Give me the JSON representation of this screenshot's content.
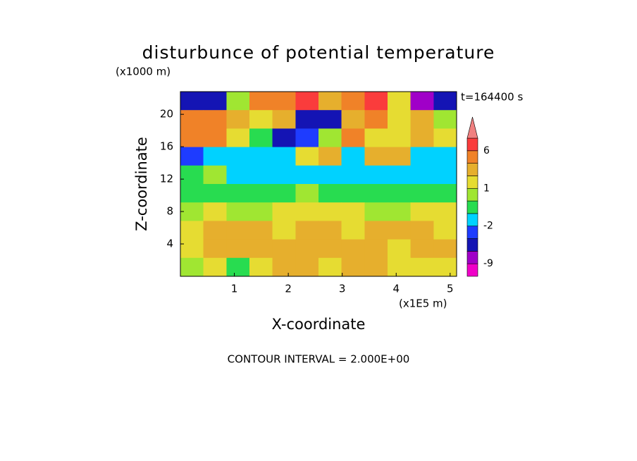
{
  "chart_data": {
    "type": "contour",
    "title": "disturbunce of potential temperature",
    "y_unit": "(x1000 m)",
    "x_unit": "(x1E5 m)",
    "xlabel": "X-coordinate",
    "ylabel": "Z-coordinate",
    "annotation": "t=164400 s",
    "footer": "CONTOUR INTERVAL = 2.000E+00",
    "xlim": [
      0,
      5.12
    ],
    "ylim": [
      0,
      22.8
    ],
    "xticks": [
      1,
      2,
      3,
      4,
      5
    ],
    "yticks": [
      4,
      8,
      12,
      16,
      20
    ],
    "x": [
      0.21,
      0.64,
      1.07,
      1.49,
      1.92,
      2.35,
      2.77,
      3.2,
      3.63,
      4.05,
      4.48,
      4.91
    ],
    "y": [
      21.66,
      19.38,
      17.1,
      14.82,
      12.54,
      10.26,
      7.98,
      5.7,
      3.42,
      1.14
    ],
    "values": [
      [
        -4,
        -5,
        0,
        3,
        4,
        7,
        2,
        3,
        7,
        1,
        -8,
        -5
      ],
      [
        3,
        4,
        2,
        1,
        2,
        -4,
        -5,
        2,
        3,
        1,
        2,
        0
      ],
      [
        4,
        3,
        1,
        -1,
        -4,
        -3,
        0,
        3,
        1,
        1,
        2,
        1
      ],
      [
        -3,
        -2,
        -1.5,
        -1.5,
        -1.5,
        1.5,
        2.5,
        -1.5,
        2.5,
        2.5,
        -1.5,
        -1.5
      ],
      [
        -0.5,
        0.5,
        -1.5,
        -1.5,
        -1.5,
        -1.5,
        -1.5,
        -1.5,
        -1.5,
        -1.5,
        -1.2,
        -1.2
      ],
      [
        -0.5,
        -0.5,
        -0.5,
        -0.5,
        -0.5,
        0.5,
        -0.5,
        -0.5,
        -0.5,
        -0.5,
        -0.5,
        -0.5
      ],
      [
        0.5,
        1.5,
        0.5,
        0.5,
        1.5,
        1.5,
        1.5,
        1.5,
        0.5,
        0.5,
        1.5,
        1.5
      ],
      [
        1.5,
        2.5,
        2.5,
        2.5,
        1.5,
        2.5,
        2.5,
        1.5,
        2.5,
        2.5,
        2.5,
        1.5
      ],
      [
        1.5,
        2.5,
        2.5,
        2.5,
        2.5,
        2.5,
        2.5,
        2.5,
        2.5,
        1.5,
        2.5,
        2.5
      ],
      [
        0.5,
        1.5,
        -0.5,
        1.5,
        2.5,
        2.5,
        1.5,
        2.5,
        2.5,
        1.5,
        1.5,
        1.5
      ]
    ],
    "levels": [
      -9,
      -6,
      -3,
      -2,
      -1,
      0,
      1,
      2,
      3,
      6,
      9
    ],
    "colors": [
      "#f000c8",
      "#a000c8",
      "#1414b4",
      "#1e3cff",
      "#00d2ff",
      "#28dc50",
      "#a0e632",
      "#e6dc32",
      "#e6af2d",
      "#f08228",
      "#fa3c3c",
      "#f08080"
    ],
    "colorbar_ticks": [
      -9,
      -2,
      1,
      6
    ]
  }
}
